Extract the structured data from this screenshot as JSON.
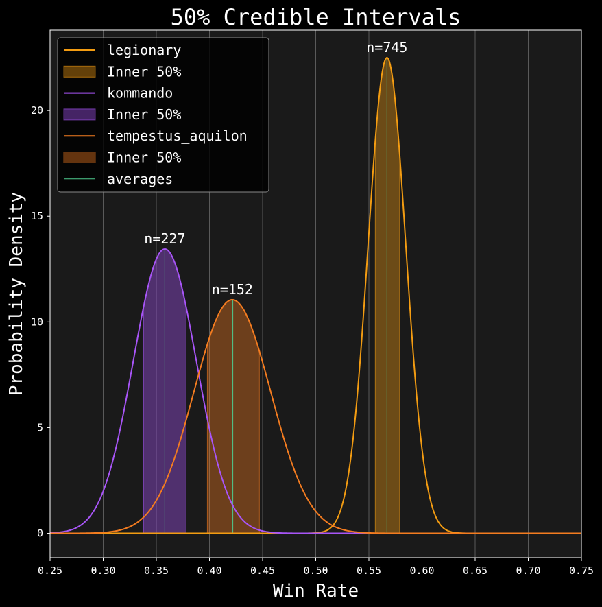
{
  "chart_data": {
    "type": "line",
    "title": "50% Credible Intervals",
    "xlabel": "Win Rate",
    "ylabel": "Probability Density",
    "xlim": [
      0.25,
      0.75
    ],
    "ylim": [
      -1.15,
      23.8
    ],
    "xticks": [
      0.25,
      0.3,
      0.35,
      0.4,
      0.45,
      0.5,
      0.55,
      0.6,
      0.65,
      0.7,
      0.75
    ],
    "xtick_labels": [
      "0.25",
      "0.30",
      "0.35",
      "0.40",
      "0.45",
      "0.50",
      "0.55",
      "0.60",
      "0.65",
      "0.70",
      "0.75"
    ],
    "yticks": [
      0,
      5,
      10,
      15,
      20
    ],
    "ytick_labels": [
      "0",
      "5",
      "10",
      "15",
      "20"
    ],
    "grid": "vertical",
    "legend_position": "top-left",
    "background": "#1a1a1a",
    "series": [
      {
        "name": "legionary",
        "color": "#f39c12",
        "mean": 0.567,
        "peak": 22.5,
        "interval": [
          0.556,
          0.579
        ],
        "interval_label": "Inner 50%",
        "annotation": "n=745"
      },
      {
        "name": "kommando",
        "color": "#a855f7",
        "mean": 0.358,
        "peak": 13.45,
        "interval": [
          0.338,
          0.378
        ],
        "interval_label": "Inner 50%",
        "annotation": "n=227"
      },
      {
        "name": "tempestus_aquilon",
        "color": "#f47c20",
        "mean": 0.4215,
        "peak": 11.05,
        "interval": [
          0.398,
          0.447
        ],
        "interval_label": "Inner 50%",
        "annotation": "n=152"
      }
    ],
    "averages": {
      "name": "averages",
      "color": "#4ecb8f",
      "values": [
        0.567,
        0.358,
        0.422
      ]
    }
  }
}
